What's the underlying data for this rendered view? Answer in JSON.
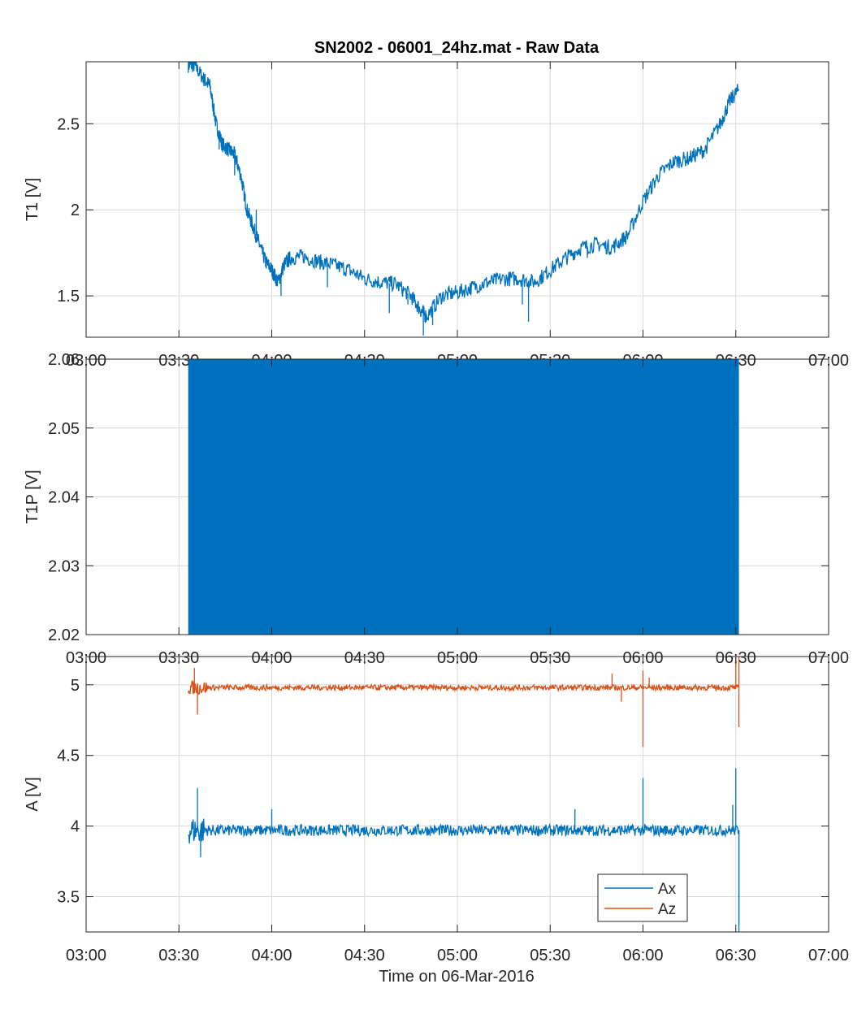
{
  "figure": {
    "title": "SN2002 - 06001_24hz.mat - Raw Data",
    "xlabel": "Time on 06-Mar-2016"
  },
  "colors": {
    "blue": "#0072BD",
    "orange": "#D95319",
    "grid": "#d9d9d9",
    "axis": "#262626"
  },
  "chart_data": [
    {
      "type": "line",
      "ylabel": "T1 [V]",
      "xlim": [
        "03:00",
        "07:00"
      ],
      "ylim": [
        1.26,
        2.86
      ],
      "yticks": [
        1.5,
        2,
        2.5
      ],
      "ytick_labels": [
        "1.5",
        "2",
        "2.5"
      ],
      "xticks": [
        "03:00",
        "03:30",
        "04:00",
        "04:30",
        "05:00",
        "05:30",
        "06:00",
        "06:30",
        "07:00"
      ],
      "grid": true,
      "series": [
        {
          "color": "#0072BD",
          "x": [
            "03:33",
            "03:35",
            "03:38",
            "03:40",
            "03:42",
            "03:44",
            "03:46",
            "03:48",
            "03:50",
            "03:52",
            "03:54",
            "03:56",
            "03:58",
            "04:00",
            "04:02",
            "04:04",
            "04:06",
            "04:10",
            "04:15",
            "04:20",
            "04:25",
            "04:30",
            "04:35",
            "04:40",
            "04:45",
            "04:48",
            "04:50",
            "04:55",
            "05:00",
            "05:05",
            "05:10",
            "05:15",
            "05:20",
            "05:25",
            "05:30",
            "05:35",
            "05:40",
            "05:45",
            "05:50",
            "05:55",
            "06:00",
            "06:05",
            "06:10",
            "06:15",
            "06:20",
            "06:25",
            "06:28",
            "06:31"
          ],
          "y": [
            2.84,
            2.84,
            2.76,
            2.72,
            2.5,
            2.38,
            2.35,
            2.32,
            2.2,
            2.0,
            1.9,
            1.8,
            1.7,
            1.65,
            1.58,
            1.68,
            1.72,
            1.73,
            1.7,
            1.68,
            1.65,
            1.6,
            1.58,
            1.57,
            1.5,
            1.42,
            1.38,
            1.5,
            1.52,
            1.55,
            1.58,
            1.6,
            1.6,
            1.58,
            1.65,
            1.72,
            1.78,
            1.8,
            1.78,
            1.85,
            2.05,
            2.2,
            2.28,
            2.3,
            2.35,
            2.5,
            2.63,
            2.7
          ],
          "spike_x": [
            "03:43",
            "03:48",
            "03:55",
            "04:03",
            "04:18",
            "04:38",
            "04:44",
            "04:49",
            "04:52",
            "05:21",
            "05:23",
            "05:42"
          ],
          "spike_y": [
            2.35,
            2.2,
            2.0,
            1.5,
            1.55,
            1.4,
            1.45,
            1.27,
            1.33,
            1.45,
            1.35,
            1.72
          ]
        }
      ]
    },
    {
      "type": "area",
      "ylabel": "T1P [V]",
      "xlim": [
        "03:00",
        "07:00"
      ],
      "ylim": [
        2.02,
        2.06
      ],
      "yticks": [
        2.02,
        2.03,
        2.04,
        2.05,
        2.06
      ],
      "ytick_labels": [
        "2.02",
        "2.03",
        "2.04",
        "2.05",
        "2.06"
      ],
      "xticks": [
        "03:00",
        "03:30",
        "04:00",
        "04:30",
        "05:00",
        "05:30",
        "06:00",
        "06:30",
        "07:00"
      ],
      "grid": true,
      "series": [
        {
          "color": "#0072BD",
          "x_start": "03:33",
          "x_end": "06:31",
          "y_min": 2.02,
          "y_max": 2.06
        }
      ]
    },
    {
      "type": "line",
      "ylabel": "A [V]",
      "xlim": [
        "03:00",
        "07:00"
      ],
      "ylim": [
        3.25,
        5.2
      ],
      "yticks": [
        3.5,
        4,
        4.5,
        5
      ],
      "ytick_labels": [
        "3.5",
        "4",
        "4.5",
        "5"
      ],
      "xticks": [
        "03:00",
        "03:30",
        "04:00",
        "04:30",
        "05:00",
        "05:30",
        "06:00",
        "06:30",
        "07:00"
      ],
      "xtick_labels": [
        "03:00",
        "03:30",
        "04:00",
        "04:30",
        "05:00",
        "05:30",
        "06:00",
        "06:30",
        "07:00"
      ],
      "grid": true,
      "legend": {
        "position": "bottom-right",
        "entries": [
          "Ax",
          "Az"
        ]
      },
      "series": [
        {
          "name": "Ax",
          "color": "#0072BD",
          "x_start": "03:33",
          "x_end": "06:31",
          "baseline": 3.97,
          "noise": 0.04,
          "spike_x": [
            "03:36",
            "03:37",
            "04:00",
            "05:38",
            "06:00",
            "06:29",
            "06:30",
            "06:31",
            "06:31"
          ],
          "spike_y": [
            4.27,
            3.78,
            4.12,
            4.12,
            4.34,
            4.15,
            4.41,
            3.3,
            3.25
          ]
        },
        {
          "name": "Az",
          "color": "#D95319",
          "x_start": "03:33",
          "x_end": "06:31",
          "baseline": 4.98,
          "noise": 0.02,
          "spike_x": [
            "03:35",
            "03:36",
            "05:50",
            "05:53",
            "06:00",
            "06:00",
            "06:02",
            "06:30",
            "06:31",
            "06:31"
          ],
          "spike_y": [
            5.12,
            4.79,
            5.08,
            4.88,
            5.1,
            4.56,
            5.05,
            5.2,
            4.7,
            5.2
          ]
        }
      ]
    }
  ]
}
